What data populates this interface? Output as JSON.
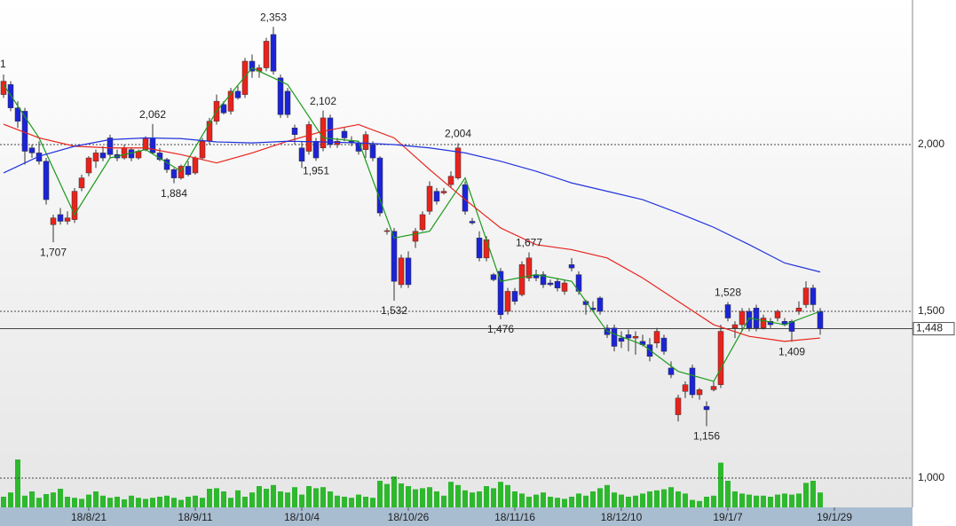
{
  "chart_data": {
    "type": "candlestick",
    "cut_label": "1",
    "ylim": [
      916,
      2400
    ],
    "yticks": [
      {
        "value": 1000,
        "label": "1,000"
      },
      {
        "value": 1500,
        "label": "1,500"
      },
      {
        "value": 2000,
        "label": "2,000"
      }
    ],
    "last_price": {
      "value": 1448,
      "label": "1,448"
    },
    "up_color": "#e8231c",
    "down_color": "#1c24d8",
    "xticks": [
      {
        "value": 12,
        "label": "18/8/21"
      },
      {
        "value": 27,
        "label": "18/9/11"
      },
      {
        "value": 42,
        "label": "18/10/4"
      },
      {
        "value": 57,
        "label": "18/10/26"
      },
      {
        "value": 72,
        "label": "18/11/16"
      },
      {
        "value": 87,
        "label": "18/12/10"
      },
      {
        "value": 102,
        "label": "19/1/7"
      },
      {
        "value": 117,
        "label": "19/1/29"
      }
    ],
    "ohlc": [
      [
        2150,
        2210,
        2140,
        2190
      ],
      [
        2180,
        2190,
        2100,
        2110
      ],
      [
        2110,
        2130,
        2050,
        2070
      ],
      [
        2100,
        2110,
        1940,
        1980
      ],
      [
        1990,
        2000,
        1960,
        1975
      ],
      [
        1975,
        2010,
        1940,
        1950
      ],
      [
        1950,
        1960,
        1820,
        1835
      ],
      [
        1760,
        1790,
        1707,
        1780
      ],
      [
        1790,
        1810,
        1760,
        1770
      ],
      [
        1770,
        1800,
        1760,
        1780
      ],
      [
        1775,
        1870,
        1765,
        1860
      ],
      [
        1870,
        1910,
        1860,
        1900
      ],
      [
        1915,
        1965,
        1905,
        1960
      ],
      [
        1950,
        1985,
        1930,
        1975
      ],
      [
        1975,
        1995,
        1950,
        1960
      ],
      [
        2020,
        2030,
        1960,
        1970
      ],
      [
        1970,
        1985,
        1950,
        1960
      ],
      [
        1960,
        2000,
        1955,
        1990
      ],
      [
        1985,
        1990,
        1950,
        1960
      ],
      [
        1960,
        1985,
        1955,
        1980
      ],
      [
        1985,
        2025,
        1980,
        2020
      ],
      [
        2020,
        2062,
        1970,
        1975
      ],
      [
        1975,
        1990,
        1950,
        1955
      ],
      [
        1955,
        1960,
        1915,
        1925
      ],
      [
        1925,
        1930,
        1884,
        1900
      ],
      [
        1900,
        1940,
        1895,
        1935
      ],
      [
        1935,
        1950,
        1905,
        1910
      ],
      [
        1915,
        1965,
        1910,
        1960
      ],
      [
        1960,
        2020,
        1955,
        2010
      ],
      [
        2010,
        2080,
        2000,
        2070
      ],
      [
        2070,
        2150,
        2060,
        2130
      ],
      [
        2120,
        2130,
        2090,
        2095
      ],
      [
        2100,
        2170,
        2090,
        2160
      ],
      [
        2160,
        2175,
        2135,
        2140
      ],
      [
        2150,
        2260,
        2140,
        2250
      ],
      [
        2250,
        2270,
        2200,
        2220
      ],
      [
        2220,
        2240,
        2200,
        2230
      ],
      [
        2230,
        2320,
        2220,
        2310
      ],
      [
        2330,
        2353,
        2210,
        2220
      ],
      [
        2200,
        2210,
        2080,
        2090
      ],
      [
        2160,
        2170,
        2080,
        2090
      ],
      [
        2050,
        2060,
        2000,
        2030
      ],
      [
        1990,
        2010,
        1930,
        1950
      ],
      [
        1980,
        2070,
        1970,
        2060
      ],
      [
        2010,
        2020,
        1951,
        1960
      ],
      [
        1990,
        2102,
        1980,
        2080
      ],
      [
        2080,
        2090,
        1990,
        2000
      ],
      [
        2000,
        2020,
        1990,
        2010
      ],
      [
        2040,
        2050,
        2010,
        2020
      ],
      [
        2010,
        2025,
        1995,
        2005
      ],
      [
        2005,
        2010,
        1970,
        1980
      ],
      [
        1985,
        2040,
        1960,
        2030
      ],
      [
        2000,
        2010,
        1950,
        1960
      ],
      [
        1960,
        1965,
        1785,
        1795
      ],
      [
        1740,
        1750,
        1730,
        1742
      ],
      [
        1740,
        1750,
        1532,
        1590
      ],
      [
        1580,
        1670,
        1570,
        1660
      ],
      [
        1660,
        1680,
        1570,
        1580
      ],
      [
        1710,
        1750,
        1690,
        1740
      ],
      [
        1745,
        1800,
        1740,
        1790
      ],
      [
        1800,
        1890,
        1790,
        1875
      ],
      [
        1860,
        1870,
        1820,
        1830
      ],
      [
        1855,
        1870,
        1850,
        1860
      ],
      [
        1880,
        1920,
        1870,
        1905
      ],
      [
        1900,
        2004,
        1895,
        1990
      ],
      [
        1880,
        1890,
        1790,
        1800
      ],
      [
        1770,
        1780,
        1760,
        1765
      ],
      [
        1720,
        1740,
        1650,
        1660
      ],
      [
        1660,
        1725,
        1650,
        1715
      ],
      [
        1610,
        1615,
        1590,
        1595
      ],
      [
        1620,
        1630,
        1476,
        1490
      ],
      [
        1500,
        1570,
        1490,
        1560
      ],
      [
        1560,
        1570,
        1520,
        1530
      ],
      [
        1550,
        1650,
        1545,
        1640
      ],
      [
        1600,
        1677,
        1590,
        1660
      ],
      [
        1610,
        1625,
        1590,
        1600
      ],
      [
        1610,
        1620,
        1570,
        1580
      ],
      [
        1585,
        1595,
        1575,
        1580
      ],
      [
        1590,
        1600,
        1560,
        1570
      ],
      [
        1560,
        1595,
        1550,
        1585
      ],
      [
        1640,
        1660,
        1620,
        1630
      ],
      [
        1610,
        1620,
        1550,
        1560
      ],
      [
        1530,
        1535,
        1490,
        1520
      ],
      [
        1510,
        1530,
        1500,
        1505
      ],
      [
        1540,
        1545,
        1490,
        1500
      ],
      [
        1450,
        1460,
        1420,
        1430
      ],
      [
        1450,
        1460,
        1380,
        1395
      ],
      [
        1420,
        1440,
        1390,
        1410
      ],
      [
        1430,
        1445,
        1380,
        1420
      ],
      [
        1420,
        1440,
        1370,
        1425
      ],
      [
        1410,
        1430,
        1395,
        1400
      ],
      [
        1400,
        1420,
        1350,
        1365
      ],
      [
        1405,
        1450,
        1390,
        1440
      ],
      [
        1420,
        1430,
        1370,
        1380
      ],
      [
        1330,
        1350,
        1300,
        1310
      ],
      [
        1190,
        1250,
        1170,
        1240
      ],
      [
        1260,
        1290,
        1240,
        1280
      ],
      [
        1330,
        1340,
        1240,
        1250
      ],
      [
        1250,
        1270,
        1235,
        1265
      ],
      [
        1215,
        1230,
        1156,
        1205
      ],
      [
        1265,
        1290,
        1260,
        1275
      ],
      [
        1280,
        1460,
        1270,
        1440
      ],
      [
        1520,
        1528,
        1470,
        1480
      ],
      [
        1450,
        1470,
        1420,
        1460
      ],
      [
        1460,
        1510,
        1440,
        1500
      ],
      [
        1500,
        1510,
        1440,
        1450
      ],
      [
        1510,
        1520,
        1440,
        1450
      ],
      [
        1450,
        1490,
        1445,
        1480
      ],
      [
        1470,
        1480,
        1450,
        1460
      ],
      [
        1480,
        1505,
        1470,
        1500
      ],
      [
        1470,
        1480,
        1455,
        1460
      ],
      [
        1470,
        1475,
        1409,
        1440
      ],
      [
        1500,
        1530,
        1490,
        1510
      ],
      [
        1520,
        1590,
        1510,
        1570
      ],
      [
        1570,
        1580,
        1500,
        1520
      ],
      [
        1500,
        1510,
        1430,
        1448
      ]
    ],
    "annotations": [
      {
        "candle": 38,
        "value": 2353,
        "label": "2,353"
      },
      {
        "candle": 45,
        "value": 2102,
        "label": "2,102"
      },
      {
        "candle": 21,
        "value": 2062,
        "label": "2,062"
      },
      {
        "candle": 64,
        "value": 2004,
        "label": "2,004"
      },
      {
        "candle": 24,
        "value": 1884,
        "label": "1,884"
      },
      {
        "candle": 7,
        "value": 1707,
        "label": "1,707"
      },
      {
        "candle": 44,
        "value": 1951,
        "label": "1,951"
      },
      {
        "candle": 55,
        "value": 1532,
        "label": "1,532"
      },
      {
        "candle": 70,
        "value": 1476,
        "label": "1,476"
      },
      {
        "candle": 74,
        "value": 1677,
        "label": "1,677"
      },
      {
        "candle": 102,
        "value": 1528,
        "label": "1,528"
      },
      {
        "candle": 111,
        "value": 1409,
        "label": "1,409"
      },
      {
        "candle": 99,
        "value": 1156,
        "label": "1,156"
      }
    ],
    "moving_averages": [
      {
        "color": "#1a9a1a",
        "x": [
          0,
          5,
          10,
          15,
          20,
          25,
          30,
          35,
          40,
          45,
          50,
          55,
          60,
          65,
          70,
          75,
          80,
          85,
          90,
          95,
          100,
          105,
          110,
          115
        ],
        "values": [
          2180,
          2020,
          1790,
          1960,
          1985,
          1920,
          2100,
          2230,
          2180,
          2020,
          2010,
          1720,
          1740,
          1900,
          1590,
          1610,
          1590,
          1440,
          1400,
          1320,
          1290,
          1480,
          1460,
          1500
        ]
      },
      {
        "color": "#e8231c",
        "x": [
          0,
          5,
          10,
          15,
          20,
          25,
          30,
          35,
          40,
          45,
          50,
          55,
          60,
          65,
          70,
          75,
          80,
          85,
          90,
          95,
          100,
          105,
          110,
          115
        ],
        "values": [
          2061,
          2020,
          1995,
          1990,
          1990,
          1970,
          1945,
          1975,
          2010,
          2040,
          2060,
          2020,
          1925,
          1835,
          1750,
          1700,
          1685,
          1660,
          1600,
          1530,
          1460,
          1425,
          1410,
          1420
        ]
      },
      {
        "color": "#2233dd",
        "x": [
          0,
          5,
          10,
          15,
          20,
          25,
          30,
          35,
          40,
          45,
          50,
          55,
          60,
          65,
          70,
          75,
          80,
          85,
          90,
          95,
          100,
          105,
          110,
          115
        ],
        "values": [
          1915,
          1965,
          1995,
          2015,
          2020,
          2018,
          2008,
          2005,
          2010,
          2008,
          2005,
          2000,
          1990,
          1975,
          1950,
          1920,
          1885,
          1860,
          1835,
          1795,
          1752,
          1700,
          1645,
          1618
        ]
      }
    ],
    "volume_color": "#2db82d",
    "volume_ylim": [
      0,
      100
    ],
    "volume": [
      20,
      28,
      90,
      22,
      30,
      18,
      25,
      28,
      35,
      20,
      18,
      16,
      24,
      30,
      22,
      18,
      20,
      15,
      22,
      18,
      16,
      18,
      20,
      22,
      18,
      14,
      20,
      22,
      18,
      35,
      36,
      30,
      18,
      32,
      20,
      28,
      40,
      35,
      42,
      30,
      28,
      38,
      24,
      40,
      36,
      38,
      30,
      22,
      20,
      18,
      24,
      20,
      18,
      50,
      44,
      58,
      45,
      40,
      34,
      36,
      38,
      30,
      22,
      48,
      42,
      32,
      28,
      30,
      40,
      36,
      48,
      42,
      30,
      26,
      20,
      24,
      28,
      20,
      18,
      16,
      20,
      26,
      22,
      30,
      36,
      42,
      28,
      24,
      20,
      22,
      26,
      30,
      32,
      34,
      38,
      30,
      26,
      14,
      12,
      20,
      22,
      84,
      50,
      30,
      26,
      24,
      22,
      22,
      20,
      24,
      26,
      24,
      26,
      46,
      50,
      28
    ]
  }
}
